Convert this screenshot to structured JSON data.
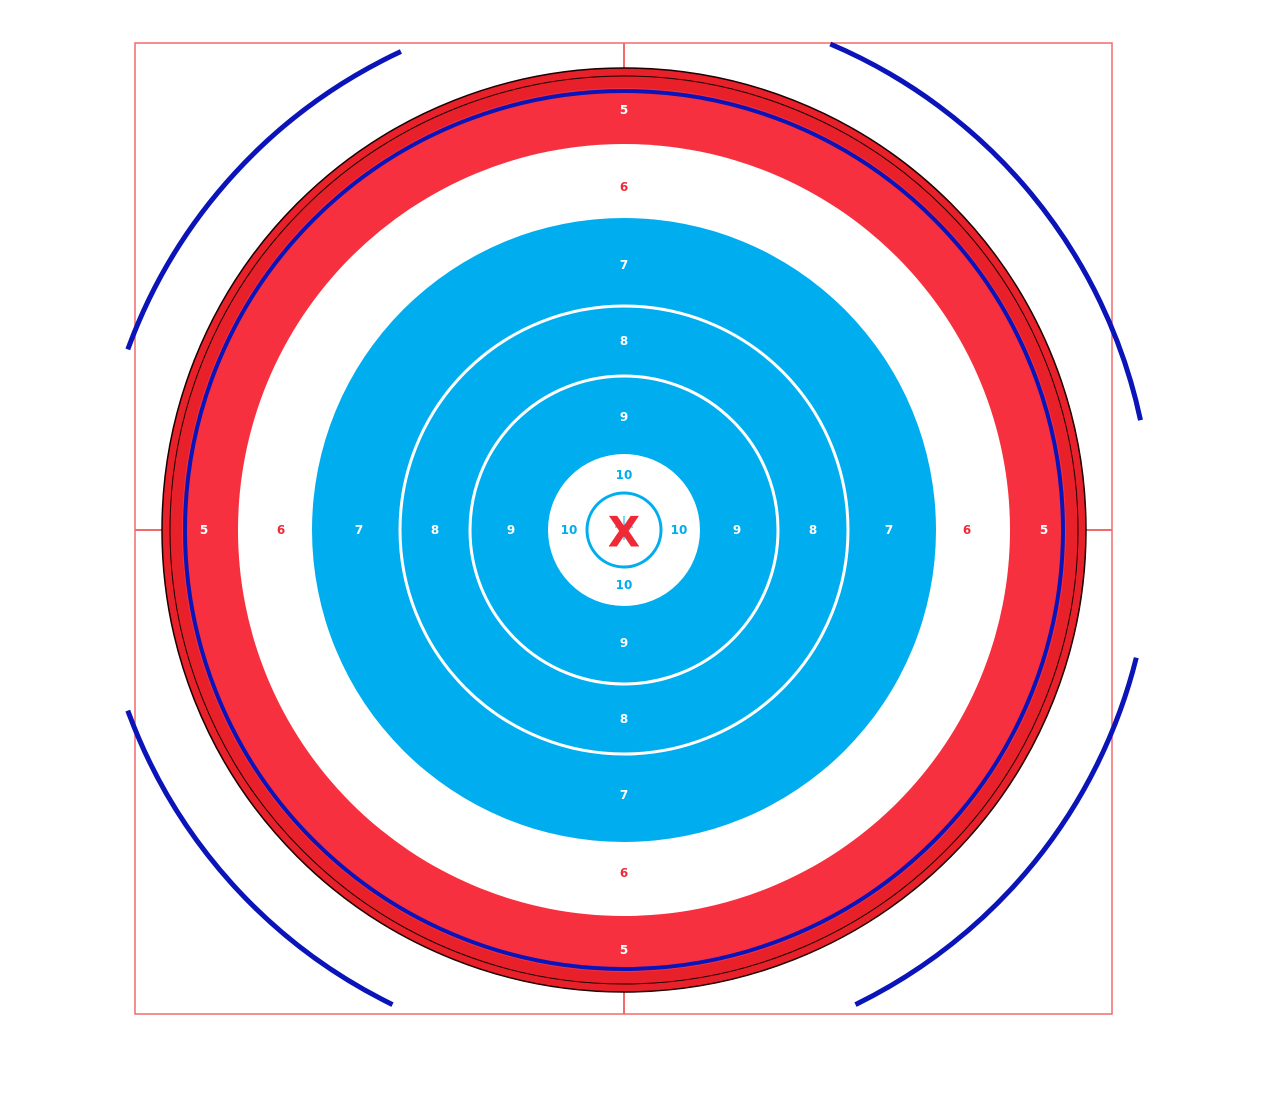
{
  "target": {
    "colors": {
      "outer_rim": "#e8202a",
      "outer_rim_stroke": "#1a0000",
      "red_band": "#f6303f",
      "white_band": "#ffffff",
      "blue_band": "#00adee",
      "blue_line": "#0a14b8",
      "frame_line": "#f26a6a",
      "label_white": "#ffffff",
      "label_red": "#ee2a36",
      "label_blue": "#00adee",
      "center_mark": "#ee2a36"
    },
    "center_mark": "X",
    "rings": [
      {
        "score": "5",
        "label_color": "white"
      },
      {
        "score": "6",
        "label_color": "red"
      },
      {
        "score": "7",
        "label_color": "white"
      },
      {
        "score": "8",
        "label_color": "white"
      },
      {
        "score": "9",
        "label_color": "white"
      },
      {
        "score": "10",
        "label_color": "blue"
      }
    ]
  }
}
